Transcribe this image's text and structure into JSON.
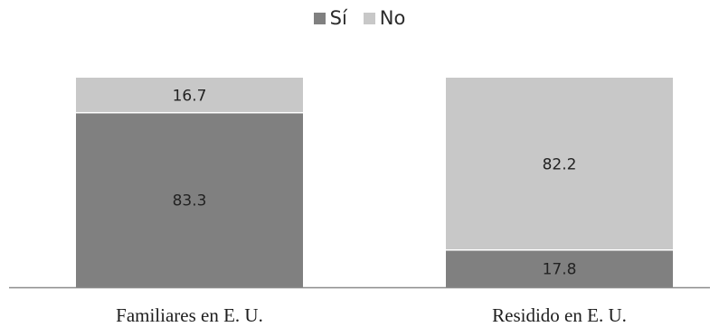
{
  "chart_data": {
    "type": "bar",
    "stacked": true,
    "categories": [
      "Familiares en E. U.",
      "Residido en E. U."
    ],
    "series": [
      {
        "name": "Sí",
        "values": [
          83.3,
          17.8
        ],
        "color": "#808080"
      },
      {
        "name": "No",
        "values": [
          16.7,
          82.2
        ],
        "color": "#c8c8c8"
      }
    ],
    "value_labels": [
      [
        "83.3",
        "17.8"
      ],
      [
        "16.7",
        "82.2"
      ]
    ],
    "ylim": [
      0,
      100
    ],
    "legend_position": "top-center",
    "grid": false,
    "axis_color": "#8c8c8c",
    "segment_separator_color": "#ffffff"
  }
}
